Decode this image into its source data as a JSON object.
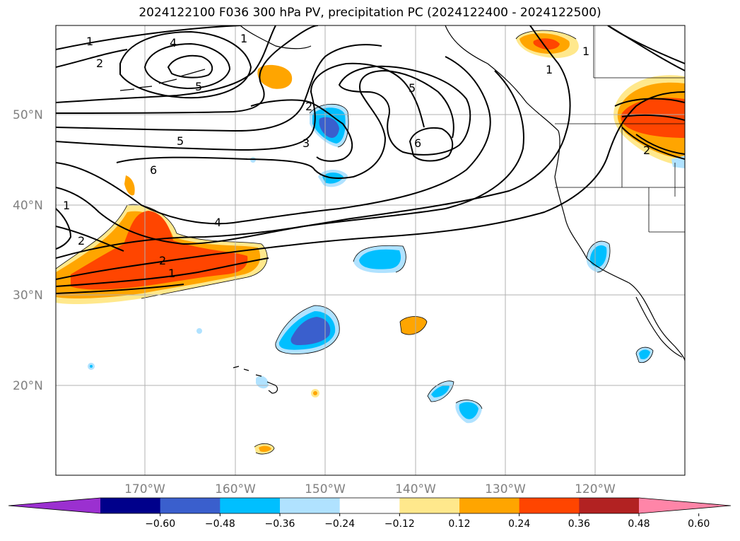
{
  "title": "2024122100 F036 300 hPa PV, precipitation PC (2024122400 - 2024122500)",
  "lat_labels": [
    "50°N",
    "40°N",
    "30°N",
    "20°N"
  ],
  "lon_labels": [
    "170°W",
    "160°W",
    "150°W",
    "140°W",
    "130°W",
    "120°W"
  ],
  "colorbar": {
    "tick_labels": [
      "−0.60",
      "−0.48",
      "−0.36",
      "−0.24",
      "−0.12",
      "0.12",
      "0.24",
      "0.36",
      "0.48",
      "0.60"
    ],
    "colors": [
      "#9b30d0",
      "#00008b",
      "#3a5fcd",
      "#00bfff",
      "#b0e2ff",
      "#ffffff",
      "#ffe88c",
      "#ffa500",
      "#ff4500",
      "#b22222",
      "#ff85a8"
    ]
  },
  "pv_contour_labels": [
    "1",
    "2",
    "4",
    "5",
    "1",
    "1",
    "6",
    "5",
    "2",
    "3",
    "5",
    "6",
    "1",
    "2",
    "4",
    "2",
    "1",
    "2",
    "1"
  ]
}
